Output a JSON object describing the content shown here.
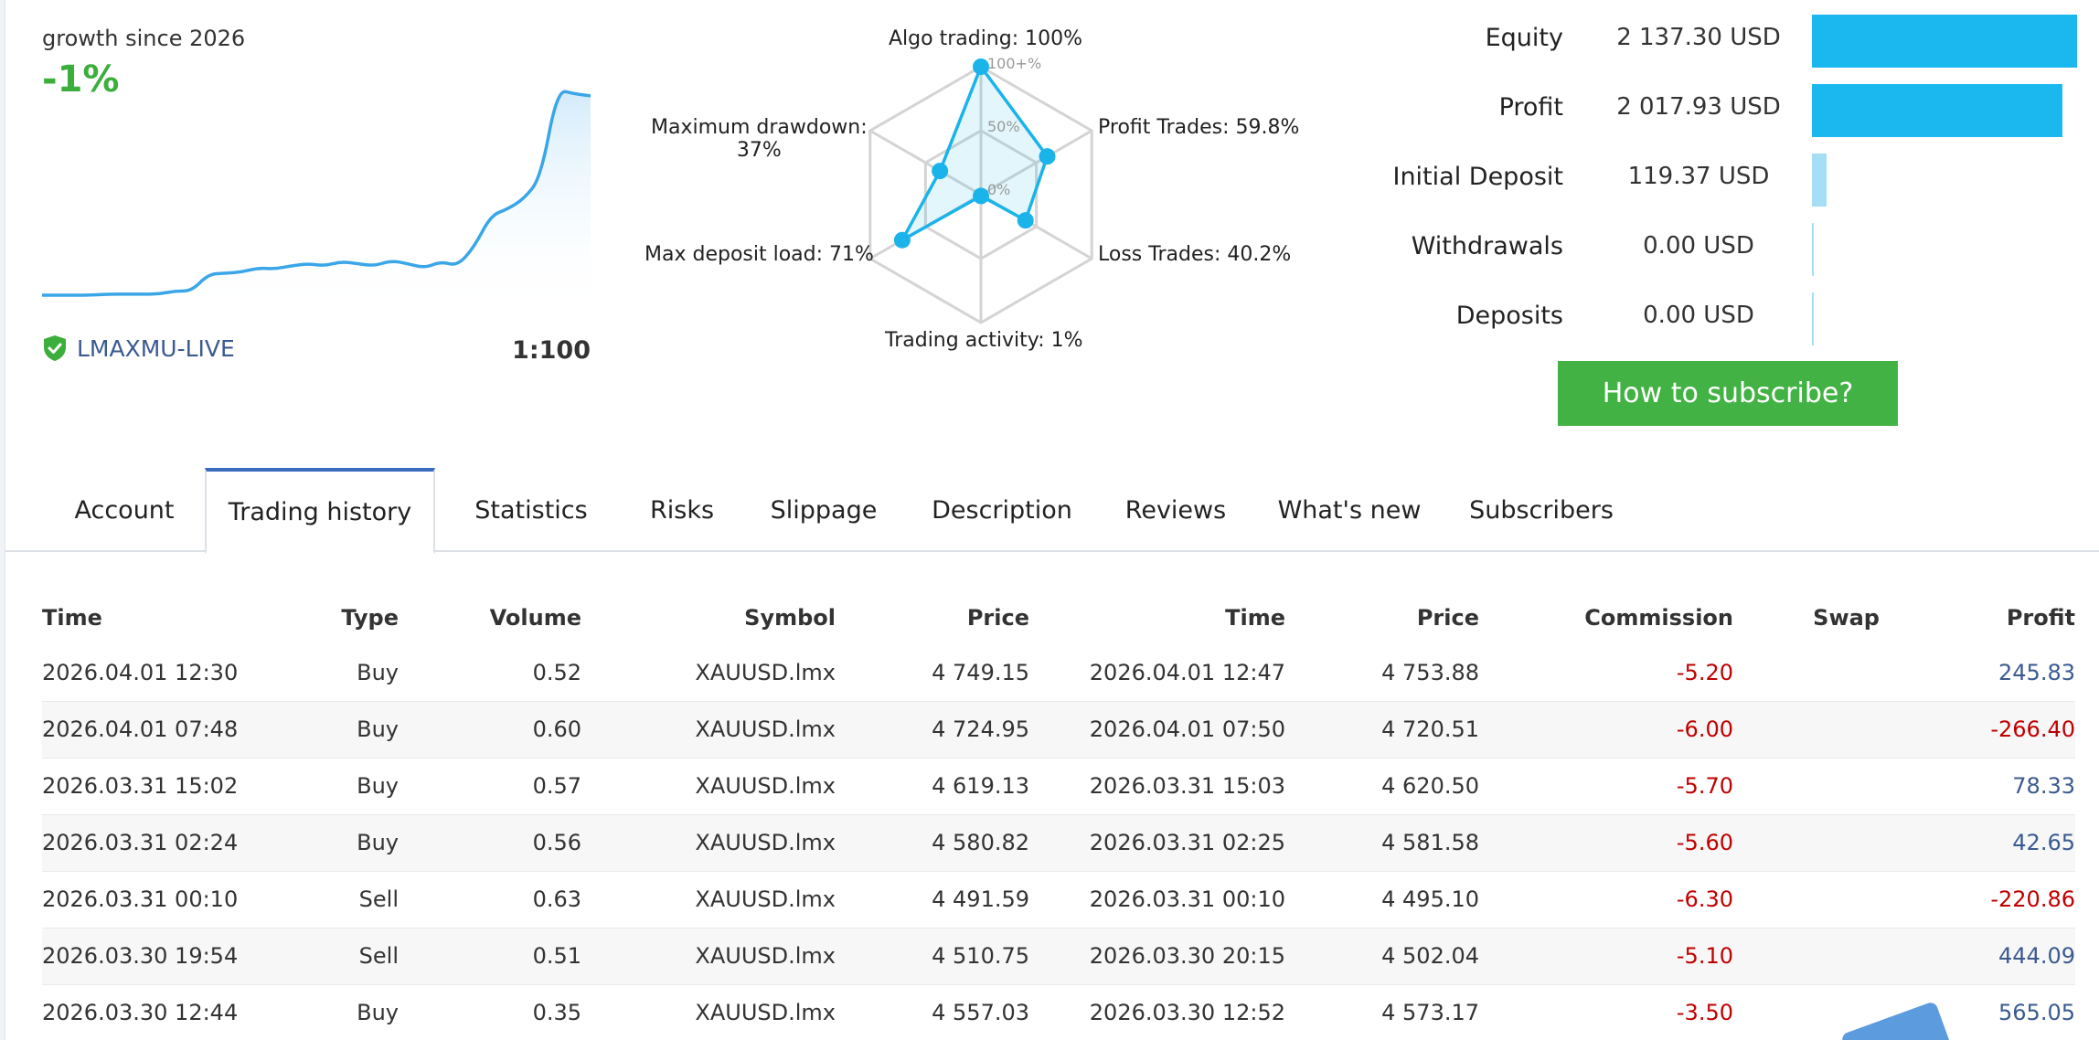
{
  "growth": {
    "label": "growth since 2026",
    "value": "-1%",
    "broker": "LMAXMU-LIVE",
    "leverage": "1:100",
    "line_color": "#3aa6e8",
    "series": [
      2,
      2,
      2,
      2,
      2.5,
      2.5,
      2.5,
      2.5,
      4,
      4,
      12,
      12.5,
      13,
      15,
      14.5,
      16,
      17,
      16,
      18,
      17,
      16,
      18.5,
      17,
      15,
      18,
      16,
      25,
      40,
      43,
      48,
      58,
      100,
      98,
      97
    ]
  },
  "radar": {
    "labels": {
      "algo": "Algo trading: 100%",
      "profit": "Profit Trades: 59.8%",
      "loss": "Loss Trades: 40.2%",
      "activity": "Trading activity: 1%",
      "load": "Max deposit load: 71%",
      "drawdown_1": "Maximum drawdown:",
      "drawdown_2": "37%"
    },
    "rings": [
      "100+%",
      "50%",
      "0%"
    ],
    "values": [
      100,
      59.8,
      40.2,
      1,
      71,
      37
    ],
    "color": "#1ab3ea"
  },
  "summary": [
    {
      "label": "Equity",
      "value": "2 137.30 USD",
      "bar": 1.0,
      "color": "#1ab8ef"
    },
    {
      "label": "Profit",
      "value": "2 017.93 USD",
      "bar": 0.944,
      "color": "#1ab8ef"
    },
    {
      "label": "Initial Deposit",
      "value": "119.37 USD",
      "bar": 0.056,
      "color": "#a6dff5"
    },
    {
      "label": "Withdrawals",
      "value": "0.00 USD",
      "bar": 0.0,
      "color": "#a6dff5"
    },
    {
      "label": "Deposits",
      "value": "0.00 USD",
      "bar": 0.0,
      "color": "#a6dff5"
    }
  ],
  "subscribe_label": "How to subscribe?",
  "tabs": [
    "Account",
    "Trading history",
    "Statistics",
    "Risks",
    "Slippage",
    "Description",
    "Reviews",
    "What's new",
    "Subscribers"
  ],
  "active_tab": "Trading history",
  "table": {
    "headers": [
      "Time",
      "Type",
      "Volume",
      "Symbol",
      "Price",
      "Time",
      "Price",
      "Commission",
      "Swap",
      "Profit"
    ],
    "rows": [
      [
        "2026.04.01 12:30",
        "Buy",
        "0.52",
        "XAUUSD.lmx",
        "4 749.15",
        "2026.04.01 12:47",
        "4 753.88",
        "-5.20",
        "",
        "245.83"
      ],
      [
        "2026.04.01 07:48",
        "Buy",
        "0.60",
        "XAUUSD.lmx",
        "4 724.95",
        "2026.04.01 07:50",
        "4 720.51",
        "-6.00",
        "",
        "-266.40"
      ],
      [
        "2026.03.31 15:02",
        "Buy",
        "0.57",
        "XAUUSD.lmx",
        "4 619.13",
        "2026.03.31 15:03",
        "4 620.50",
        "-5.70",
        "",
        "78.33"
      ],
      [
        "2026.03.31 02:24",
        "Buy",
        "0.56",
        "XAUUSD.lmx",
        "4 580.82",
        "2026.03.31 02:25",
        "4 581.58",
        "-5.60",
        "",
        "42.65"
      ],
      [
        "2026.03.31 00:10",
        "Sell",
        "0.63",
        "XAUUSD.lmx",
        "4 491.59",
        "2026.03.31 00:10",
        "4 495.10",
        "-6.30",
        "",
        "-220.86"
      ],
      [
        "2026.03.30 19:54",
        "Sell",
        "0.51",
        "XAUUSD.lmx",
        "4 510.75",
        "2026.03.30 20:15",
        "4 502.04",
        "-5.10",
        "",
        "444.09"
      ],
      [
        "2026.03.30 12:44",
        "Buy",
        "0.35",
        "XAUUSD.lmx",
        "4 557.03",
        "2026.03.30 12:52",
        "4 573.17",
        "-3.50",
        "",
        "565.05"
      ]
    ]
  },
  "colors": {
    "negative": "#c00000",
    "positive": "#3b5a91",
    "accent": "#43b244"
  }
}
